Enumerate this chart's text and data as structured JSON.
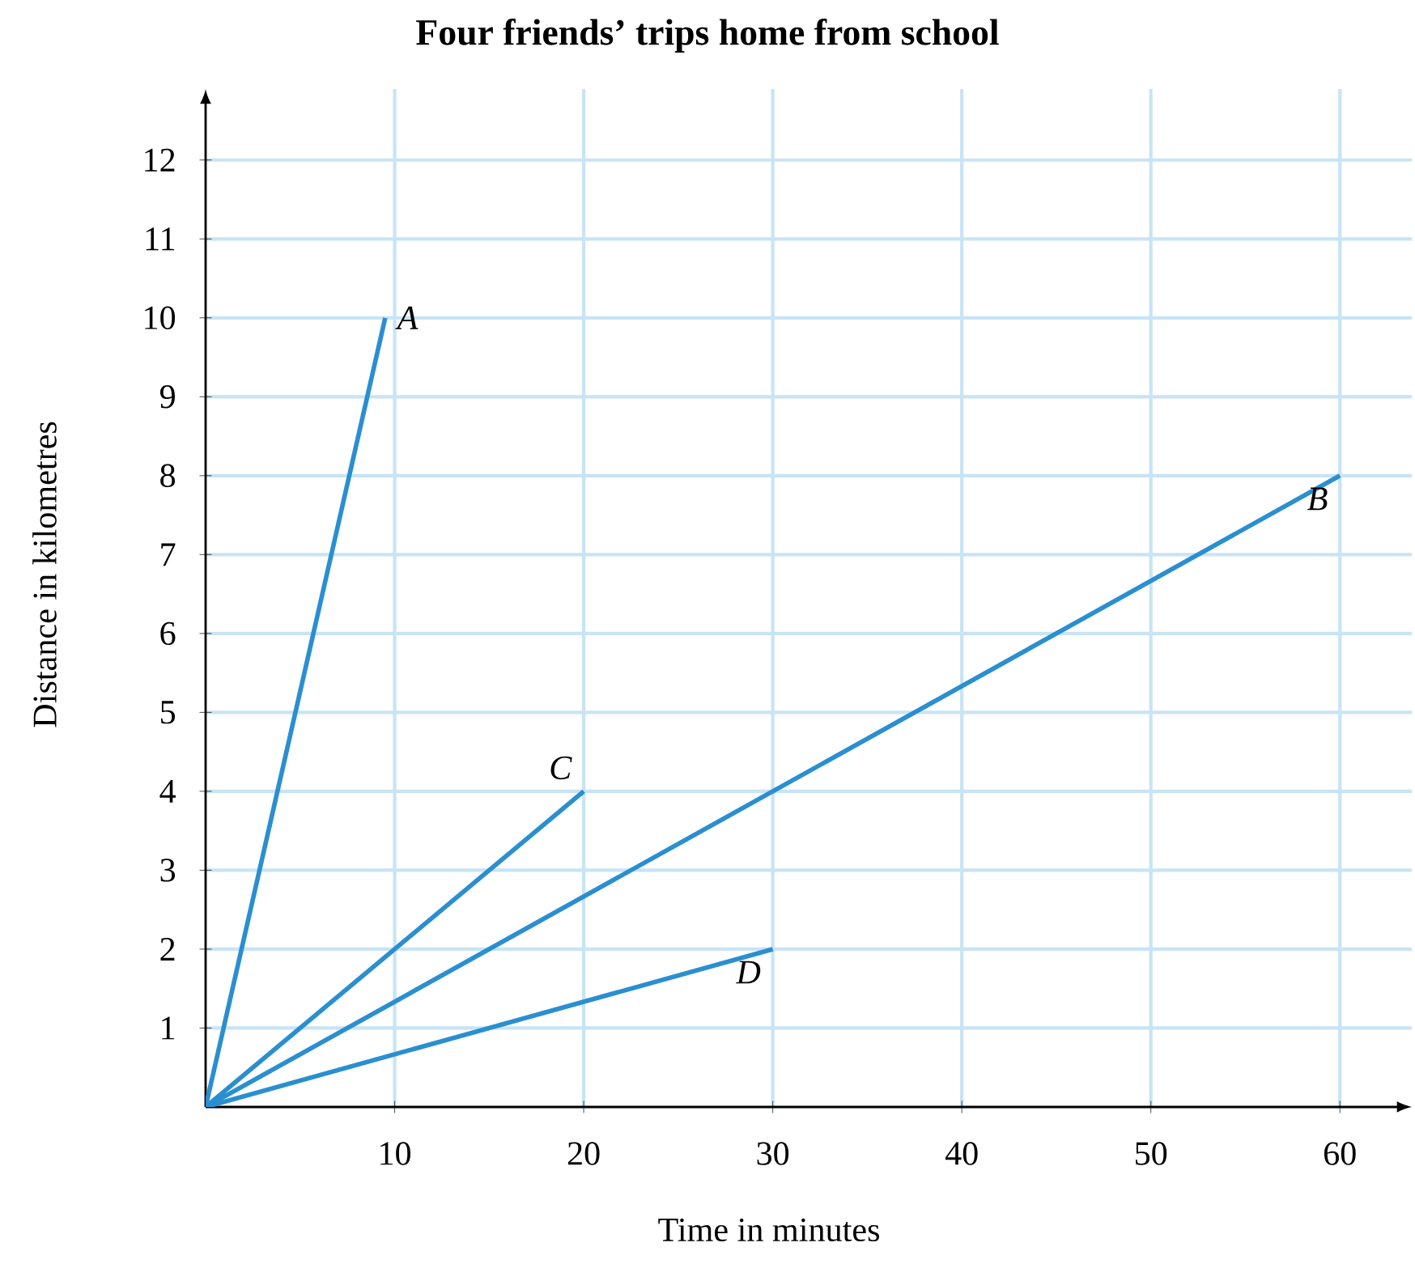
{
  "chart_data": {
    "type": "line",
    "title": "Four friends’ trips home from school",
    "xlabel": "Time in minutes",
    "ylabel": "Distance in kilometres",
    "xlim": [
      0,
      63.8
    ],
    "ylim": [
      0,
      12.9
    ],
    "xticks": [
      10,
      20,
      30,
      40,
      50,
      60
    ],
    "yticks": [
      1,
      2,
      3,
      4,
      5,
      6,
      7,
      8,
      9,
      10,
      11,
      12
    ],
    "grid": true,
    "series": [
      {
        "name": "A",
        "color": "#2a8fd0",
        "x": [
          0,
          9.5
        ],
        "values": [
          0,
          10
        ]
      },
      {
        "name": "B",
        "color": "#2a8fd0",
        "x": [
          0,
          60
        ],
        "values": [
          0,
          8
        ]
      },
      {
        "name": "C",
        "color": "#2a8fd0",
        "x": [
          0,
          20
        ],
        "values": [
          0,
          4
        ]
      },
      {
        "name": "D",
        "color": "#2a8fd0",
        "x": [
          0,
          30
        ],
        "values": [
          0,
          2
        ]
      }
    ]
  }
}
